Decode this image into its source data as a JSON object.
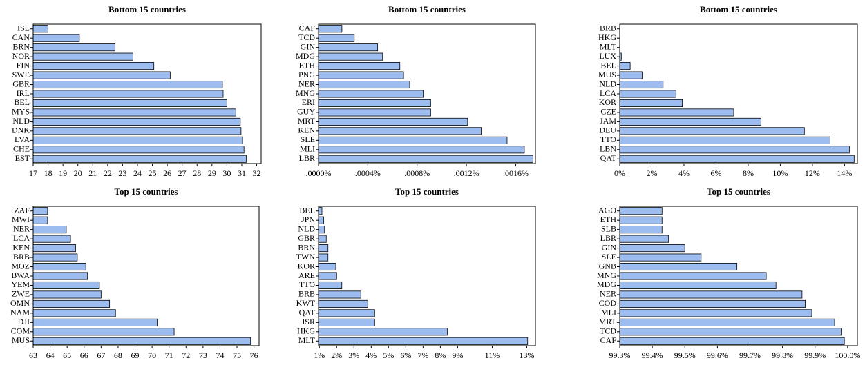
{
  "chart_data": [
    {
      "type": "barh",
      "title": "Bottom 15 countries",
      "color": "#9dbcf0",
      "categories": [
        "ISL",
        "CAN",
        "BRN",
        "NOR",
        "FIN",
        "SWE",
        "GBR",
        "IRL",
        "BEL",
        "MYS",
        "NLD",
        "DNK",
        "LVA",
        "CHE",
        "EST"
      ],
      "values": [
        18.0,
        20.1,
        22.5,
        23.7,
        25.1,
        26.2,
        29.7,
        29.75,
        30.0,
        30.6,
        30.9,
        30.95,
        31.05,
        31.15,
        31.3
      ],
      "xlim": [
        17,
        32.3
      ],
      "xticks": [
        17,
        18,
        19,
        20,
        21,
        22,
        23,
        24,
        25,
        26,
        27,
        28,
        29,
        30,
        31,
        32
      ]
    },
    {
      "type": "barh",
      "title": "Bottom 15 countries",
      "color": "#9dbcf0",
      "categories": [
        "CAF",
        "TCD",
        "GIN",
        "MDG",
        "ETH",
        "PNG",
        "NER",
        "MNG",
        "ERI",
        "GUY",
        "MRT",
        "KEN",
        "SLE",
        "MLI",
        "LBR"
      ],
      "values": [
        0.00019,
        0.00029,
        0.00048,
        0.00052,
        0.00066,
        0.00069,
        0.00074,
        0.00085,
        0.00091,
        0.00091,
        0.00121,
        0.00132,
        0.00153,
        0.00167,
        0.00174
      ],
      "xlim": [
        0,
        0.00176
      ],
      "xticks": [
        {
          "value": 0,
          "label": ".0000%"
        },
        {
          "value": 0.0004,
          "label": ".0004%"
        },
        {
          "value": 0.0008,
          "label": ".0008%"
        },
        {
          "value": 0.0012,
          "label": ".0012%"
        },
        {
          "value": 0.0016,
          "label": ".0016%"
        }
      ]
    },
    {
      "type": "barh",
      "title": "Bottom 15 countries",
      "color": "#9dbcf0",
      "categories": [
        "BRB",
        "HKG",
        "MLT",
        "LUX",
        "BEL",
        "MUS",
        "NLD",
        "LCA",
        "KOR",
        "CZE",
        "JAM",
        "DEU",
        "TTO",
        "LBN",
        "QAT"
      ],
      "values": [
        0,
        0,
        0,
        0.1,
        0.65,
        1.4,
        2.7,
        3.5,
        3.9,
        7.1,
        8.8,
        11.5,
        13.1,
        14.3,
        14.6
      ],
      "xlim": [
        0,
        14.8
      ],
      "xticks": [
        {
          "value": 0,
          "label": "0%"
        },
        {
          "value": 2,
          "label": "2%"
        },
        {
          "value": 4,
          "label": "4%"
        },
        {
          "value": 6,
          "label": "6%"
        },
        {
          "value": 8,
          "label": "8%"
        },
        {
          "value": 10,
          "label": "10%"
        },
        {
          "value": 12,
          "label": "12%"
        },
        {
          "value": 14,
          "label": "14%"
        }
      ]
    },
    {
      "type": "barh",
      "title": "Top 15 countries",
      "color": "#9dbcf0",
      "categories": [
        "ZAF",
        "MWI",
        "NER",
        "LCA",
        "KEN",
        "BRB",
        "MOZ",
        "BWA",
        "YEM",
        "ZWE",
        "OMN",
        "NAM",
        "DJI",
        "COM",
        "MUS"
      ],
      "values": [
        63.85,
        63.85,
        64.95,
        65.2,
        65.5,
        65.6,
        66.1,
        66.2,
        66.9,
        67.0,
        67.5,
        67.85,
        70.3,
        71.3,
        75.8
      ],
      "xlim": [
        63,
        76.3
      ],
      "xticks": [
        63,
        64,
        65,
        66,
        67,
        68,
        69,
        70,
        71,
        72,
        73,
        74,
        75,
        76
      ]
    },
    {
      "type": "barh",
      "title": "Top 15 countries",
      "color": "#9dbcf0",
      "categories": [
        "BEL",
        "JPN",
        "NLD",
        "GBR",
        "BRN",
        "TWN",
        "KOR",
        "ARE",
        "TTO",
        "BRB",
        "KWT",
        "QAT",
        "ISR",
        "HKG",
        "MLT"
      ],
      "values": [
        1.15,
        1.25,
        1.3,
        1.4,
        1.5,
        1.5,
        1.95,
        2.0,
        2.3,
        3.4,
        3.8,
        4.2,
        4.2,
        8.4,
        13.05
      ],
      "xlim": [
        0.95,
        13.5
      ],
      "xticks": [
        {
          "value": 1,
          "label": "1%"
        },
        {
          "value": 2,
          "label": "2%"
        },
        {
          "value": 3,
          "label": "3%"
        },
        {
          "value": 4,
          "label": "4%"
        },
        {
          "value": 5,
          "label": "5%"
        },
        {
          "value": 6,
          "label": "6%"
        },
        {
          "value": 7,
          "label": "7%"
        },
        {
          "value": 8,
          "label": "8%"
        },
        {
          "value": 9,
          "label": "9%"
        },
        {
          "value": 11,
          "label": "11%"
        },
        {
          "value": 13,
          "label": "13%"
        }
      ]
    },
    {
      "type": "barh",
      "title": "Top 15 countries",
      "color": "#9dbcf0",
      "categories": [
        "AGO",
        "ETH",
        "SLB",
        "LBR",
        "GIN",
        "SLE",
        "GNB",
        "MNG",
        "MDG",
        "NER",
        "COD",
        "MLI",
        "MRT",
        "TCD",
        "CAF"
      ],
      "values": [
        99.43,
        99.43,
        99.43,
        99.45,
        99.5,
        99.55,
        99.66,
        99.75,
        99.78,
        99.86,
        99.87,
        99.89,
        99.96,
        99.98,
        99.99
      ],
      "xlim": [
        99.3,
        100.03
      ],
      "xticks": [
        {
          "value": 99.3,
          "label": "99.3%"
        },
        {
          "value": 99.4,
          "label": "99.4%"
        },
        {
          "value": 99.5,
          "label": "99.5%"
        },
        {
          "value": 99.6,
          "label": "99.6%"
        },
        {
          "value": 99.7,
          "label": "99.7%"
        },
        {
          "value": 99.8,
          "label": "99.8%"
        },
        {
          "value": 99.9,
          "label": "99.9%"
        },
        {
          "value": 100,
          "label": "100.0%"
        }
      ]
    }
  ]
}
